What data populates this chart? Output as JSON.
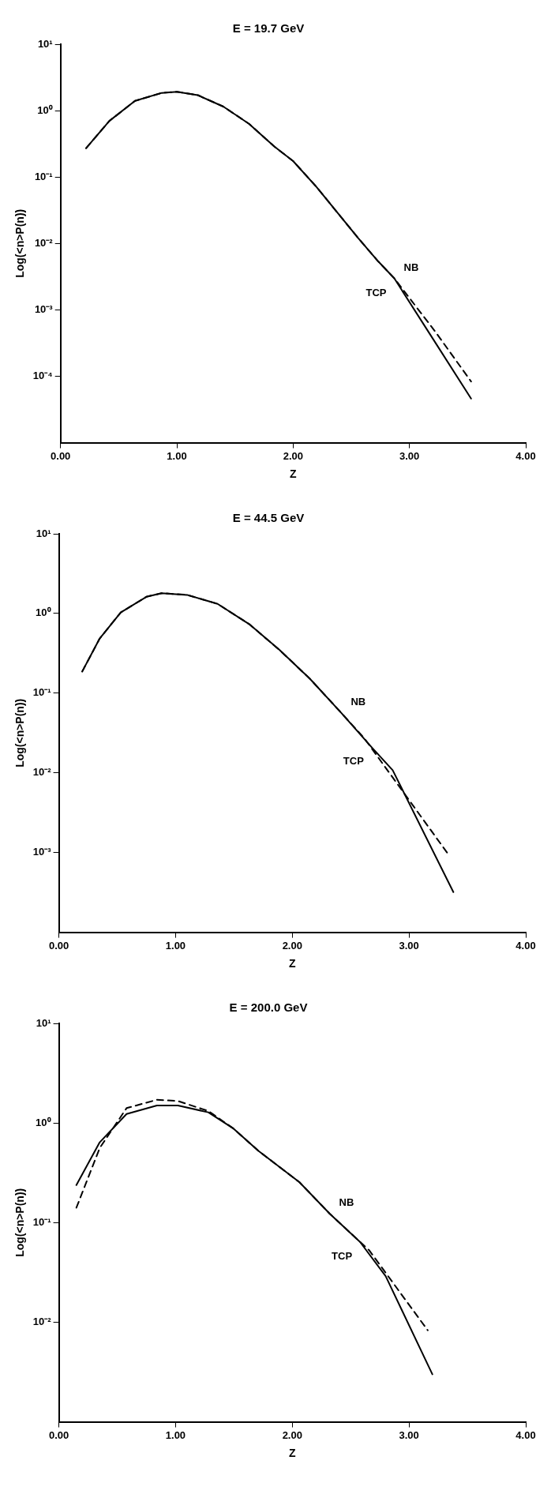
{
  "chart_data": [
    {
      "type": "line",
      "title": "E = 19.7 GeV",
      "xlabel": "Z",
      "ylabel": "Log(<n>P(n))",
      "xlim": [
        0,
        4
      ],
      "ylim": [
        1e-05,
        10
      ],
      "log": "y",
      "grid": false,
      "legend": false,
      "marker": "none",
      "xticks": [
        {
          "value": 0,
          "label": "0.00"
        },
        {
          "value": 1,
          "label": "1.00"
        },
        {
          "value": 2,
          "label": "2.00"
        },
        {
          "value": 3,
          "label": "3.00"
        },
        {
          "value": 4,
          "label": "4.00"
        }
      ],
      "yticks": [
        {
          "value": 10,
          "label": "10¹"
        },
        {
          "value": 1,
          "label": "10⁰"
        },
        {
          "value": 0.1,
          "label": "10⁻¹"
        },
        {
          "value": 0.01,
          "label": "10⁻²"
        },
        {
          "value": 0.001,
          "label": "10⁻³"
        },
        {
          "value": 0.0001,
          "label": "10⁻⁴"
        }
      ],
      "series": [
        {
          "name": "TCP",
          "color": "#000000",
          "line_style": "solid",
          "x": [
            0.22,
            0.42,
            0.64,
            0.87,
            1.0,
            1.18,
            1.4,
            1.62,
            1.84,
            2.0,
            2.2,
            2.38,
            2.56,
            2.73,
            2.87,
            3.2,
            3.53
          ],
          "values": [
            0.272,
            0.7,
            1.4,
            1.85,
            1.92,
            1.71,
            1.15,
            0.634,
            0.286,
            0.174,
            0.0713,
            0.0292,
            0.012,
            0.0054,
            0.00298,
            0.000371,
            4.61e-05
          ]
        },
        {
          "name": "NB",
          "color": "#000000",
          "line_style": "dashed",
          "x": [
            0.22,
            0.42,
            0.64,
            0.87,
            1.0,
            1.18,
            1.4,
            1.62,
            1.84,
            2.0,
            2.2,
            2.38,
            2.56,
            2.73,
            2.87,
            3.22,
            3.53
          ],
          "values": [
            0.272,
            0.7,
            1.4,
            1.85,
            1.92,
            1.71,
            1.15,
            0.634,
            0.286,
            0.174,
            0.0713,
            0.0292,
            0.012,
            0.0054,
            0.00298,
            0.000475,
            8.35e-05
          ]
        }
      ]
    },
    {
      "type": "line",
      "title": "E = 44.5 GeV",
      "xlabel": "Z",
      "ylabel": "Log(<n>P(n))",
      "xlim": [
        0,
        4
      ],
      "ylim": [
        0.0001,
        10
      ],
      "log": "y",
      "grid": false,
      "legend": false,
      "marker": "none",
      "xticks": [
        {
          "value": 0,
          "label": "0.00"
        },
        {
          "value": 1,
          "label": "1.00"
        },
        {
          "value": 2,
          "label": "2.00"
        },
        {
          "value": 3,
          "label": "3.00"
        },
        {
          "value": 4,
          "label": "4.00"
        }
      ],
      "yticks": [
        {
          "value": 10,
          "label": "10¹"
        },
        {
          "value": 1,
          "label": "10⁰"
        },
        {
          "value": 0.1,
          "label": "10⁻¹"
        },
        {
          "value": 0.01,
          "label": "10⁻²"
        },
        {
          "value": 0.001,
          "label": "10⁻³"
        }
      ],
      "series": [
        {
          "name": "TCP",
          "color": "#000000",
          "line_style": "solid",
          "x": [
            0.2,
            0.35,
            0.53,
            0.75,
            0.88,
            1.1,
            1.36,
            1.63,
            1.89,
            2.15,
            2.42,
            2.68,
            2.86,
            3.38
          ],
          "values": [
            0.187,
            0.486,
            1.03,
            1.62,
            1.8,
            1.71,
            1.32,
            0.736,
            0.349,
            0.152,
            0.0565,
            0.0209,
            0.0108,
            0.000319
          ]
        },
        {
          "name": "NB",
          "color": "#000000",
          "line_style": "dashed",
          "x": [
            0.2,
            0.35,
            0.53,
            0.75,
            0.88,
            1.1,
            1.36,
            1.63,
            1.89,
            2.15,
            2.42,
            2.62,
            3.34
          ],
          "values": [
            0.187,
            0.486,
            1.03,
            1.62,
            1.8,
            1.71,
            1.32,
            0.736,
            0.349,
            0.152,
            0.0565,
            0.0268,
            0.000935
          ]
        }
      ]
    },
    {
      "type": "line",
      "title": "E = 200.0 GeV",
      "xlabel": "Z",
      "ylabel": "Log(<n>P(n))",
      "xlim": [
        0,
        4
      ],
      "ylim": [
        0.001,
        10
      ],
      "log": "y",
      "grid": false,
      "legend": false,
      "marker": "none",
      "xticks": [
        {
          "value": 0,
          "label": "0.00"
        },
        {
          "value": 1,
          "label": "1.00"
        },
        {
          "value": 2,
          "label": "2.00"
        },
        {
          "value": 3,
          "label": "3.00"
        },
        {
          "value": 4,
          "label": "4.00"
        }
      ],
      "yticks": [
        {
          "value": 10,
          "label": "10¹"
        },
        {
          "value": 1,
          "label": "10⁰"
        },
        {
          "value": 0.1,
          "label": "10⁻¹"
        },
        {
          "value": 0.01,
          "label": "10⁻²"
        }
      ],
      "series": [
        {
          "name": "TCP",
          "color": "#000000",
          "line_style": "solid",
          "x": [
            0.15,
            0.35,
            0.58,
            0.84,
            1.02,
            1.28,
            1.49,
            1.71,
            2.06,
            2.32,
            2.58,
            2.8,
            3.2
          ],
          "values": [
            0.238,
            0.64,
            1.23,
            1.5,
            1.5,
            1.28,
            0.889,
            0.525,
            0.255,
            0.123,
            0.064,
            0.029,
            0.003
          ]
        },
        {
          "name": "NB",
          "color": "#000000",
          "line_style": "dashed",
          "x": [
            0.15,
            0.35,
            0.58,
            0.84,
            1.02,
            1.28,
            1.49,
            1.71,
            2.06,
            2.32,
            2.66,
            3.16
          ],
          "values": [
            0.141,
            0.561,
            1.41,
            1.71,
            1.66,
            1.32,
            0.889,
            0.525,
            0.255,
            0.123,
            0.0525,
            0.0083
          ]
        }
      ]
    }
  ]
}
